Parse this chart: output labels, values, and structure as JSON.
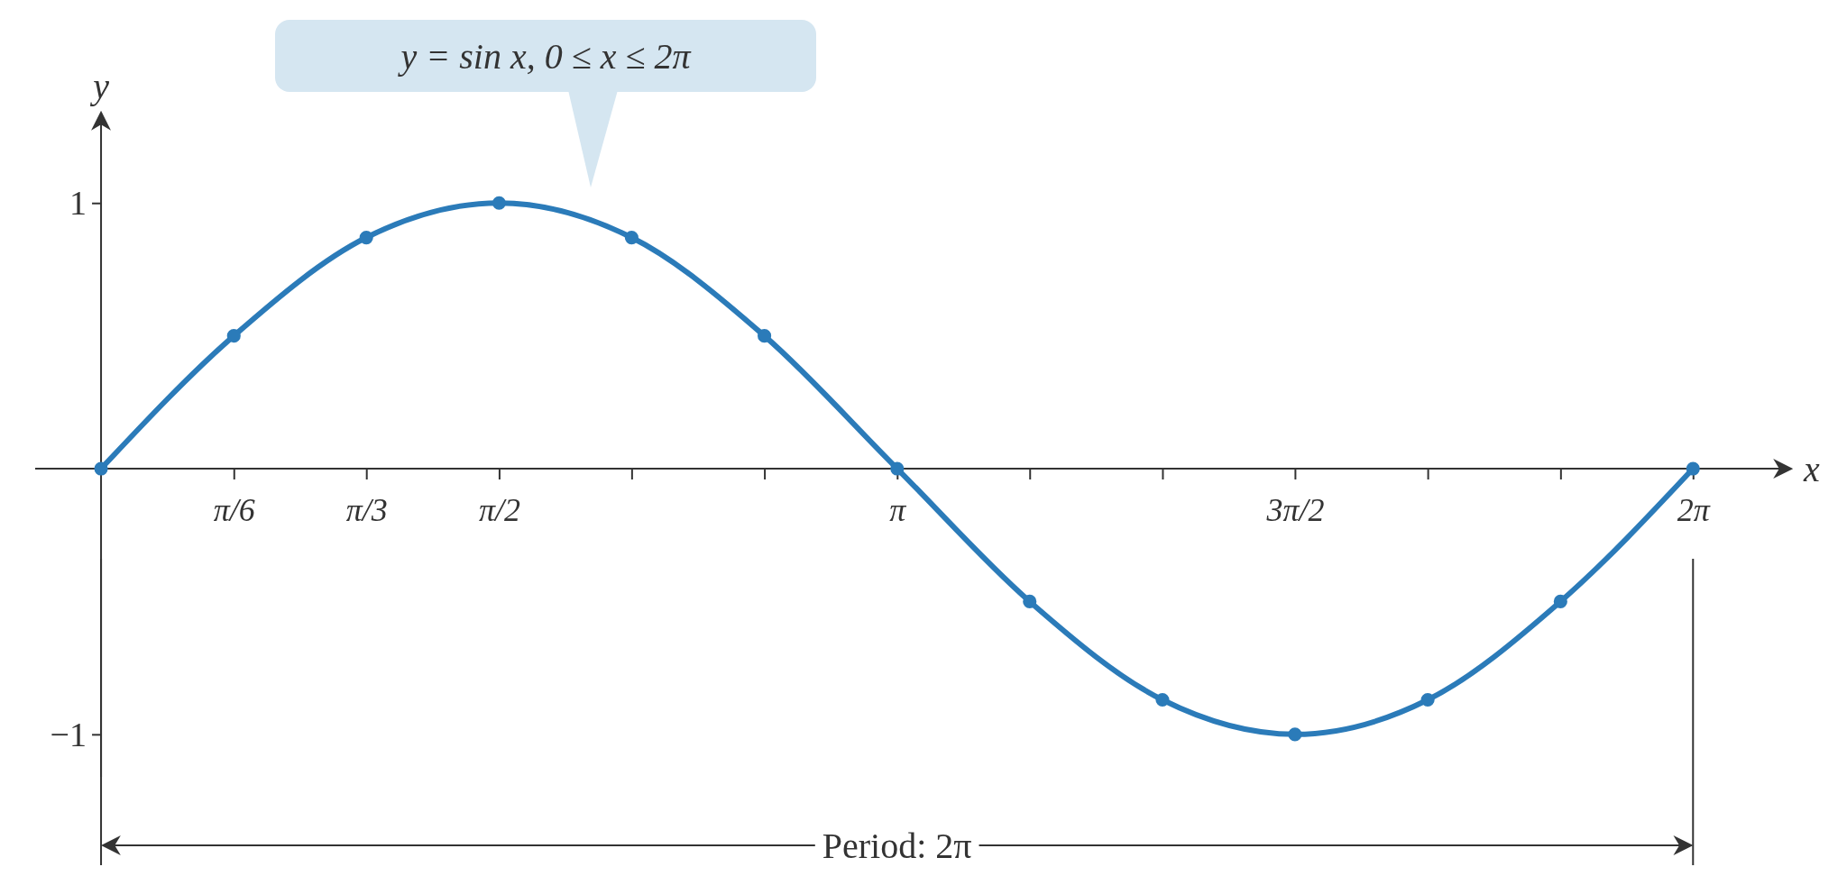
{
  "chart_data": {
    "type": "line",
    "xlabel": "x",
    "ylabel": "y",
    "x": [
      0,
      0.524,
      1.047,
      1.571,
      2.094,
      2.618,
      3.142,
      3.665,
      4.189,
      4.712,
      5.236,
      5.76,
      6.283
    ],
    "series": [
      {
        "color": "#2b7bb9",
        "values": [
          0,
          0.5,
          0.87,
          1,
          0.87,
          0.5,
          0,
          -0.5,
          -0.87,
          -1,
          -0.87,
          -0.5,
          0
        ]
      }
    ],
    "xlim": [
      -0.26,
      6.67
    ],
    "ylim": [
      -1.16,
      1.34
    ],
    "xticks": [
      {
        "value": 0.524,
        "label": "π/6"
      },
      {
        "value": 1.047,
        "label": "π/3"
      },
      {
        "value": 1.571,
        "label": "π/2"
      },
      {
        "value": 2.094,
        "label": null
      },
      {
        "value": 2.618,
        "label": null
      },
      {
        "value": 3.142,
        "label": "π"
      },
      {
        "value": 3.665,
        "label": null
      },
      {
        "value": 4.189,
        "label": null
      },
      {
        "value": 4.712,
        "label": "3π/2"
      },
      {
        "value": 5.236,
        "label": null
      },
      {
        "value": 5.76,
        "label": null
      },
      {
        "value": 6.283,
        "label": "2π"
      }
    ],
    "yticks": [
      1,
      {
        "value": -1,
        "label": "−1"
      }
    ],
    "annotations": [
      "y = sin x, 0 ≤ x ≤ 2π",
      "Period: 2π"
    ],
    "grid": false,
    "marker": "circle",
    "line_style": "solid"
  }
}
